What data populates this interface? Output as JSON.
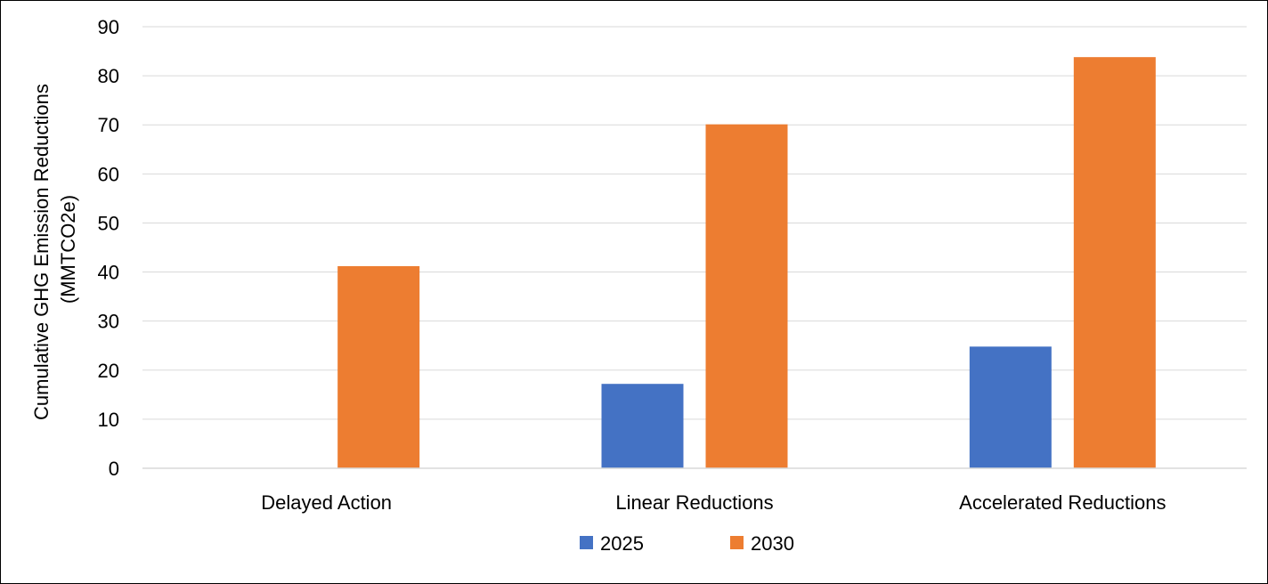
{
  "chart_data": {
    "type": "bar",
    "categories": [
      "Delayed Action",
      "Linear Reductions",
      "Accelerated Reductions"
    ],
    "series": [
      {
        "name": "2025",
        "color": "#4472C4",
        "values": [
          0,
          17.2,
          24.8
        ]
      },
      {
        "name": "2030",
        "color": "#ED7D31",
        "values": [
          41.2,
          70.1,
          83.8
        ]
      }
    ],
    "ylabel_line1": "Cumulative GHG Emission Reductions",
    "ylabel_line2": "(MMTCO2e)",
    "ylim": [
      0,
      90
    ],
    "yticks": [
      "0",
      "10",
      "20",
      "30",
      "40",
      "50",
      "60",
      "70",
      "80",
      "90"
    ],
    "grid": true,
    "legend_position": "bottom"
  }
}
